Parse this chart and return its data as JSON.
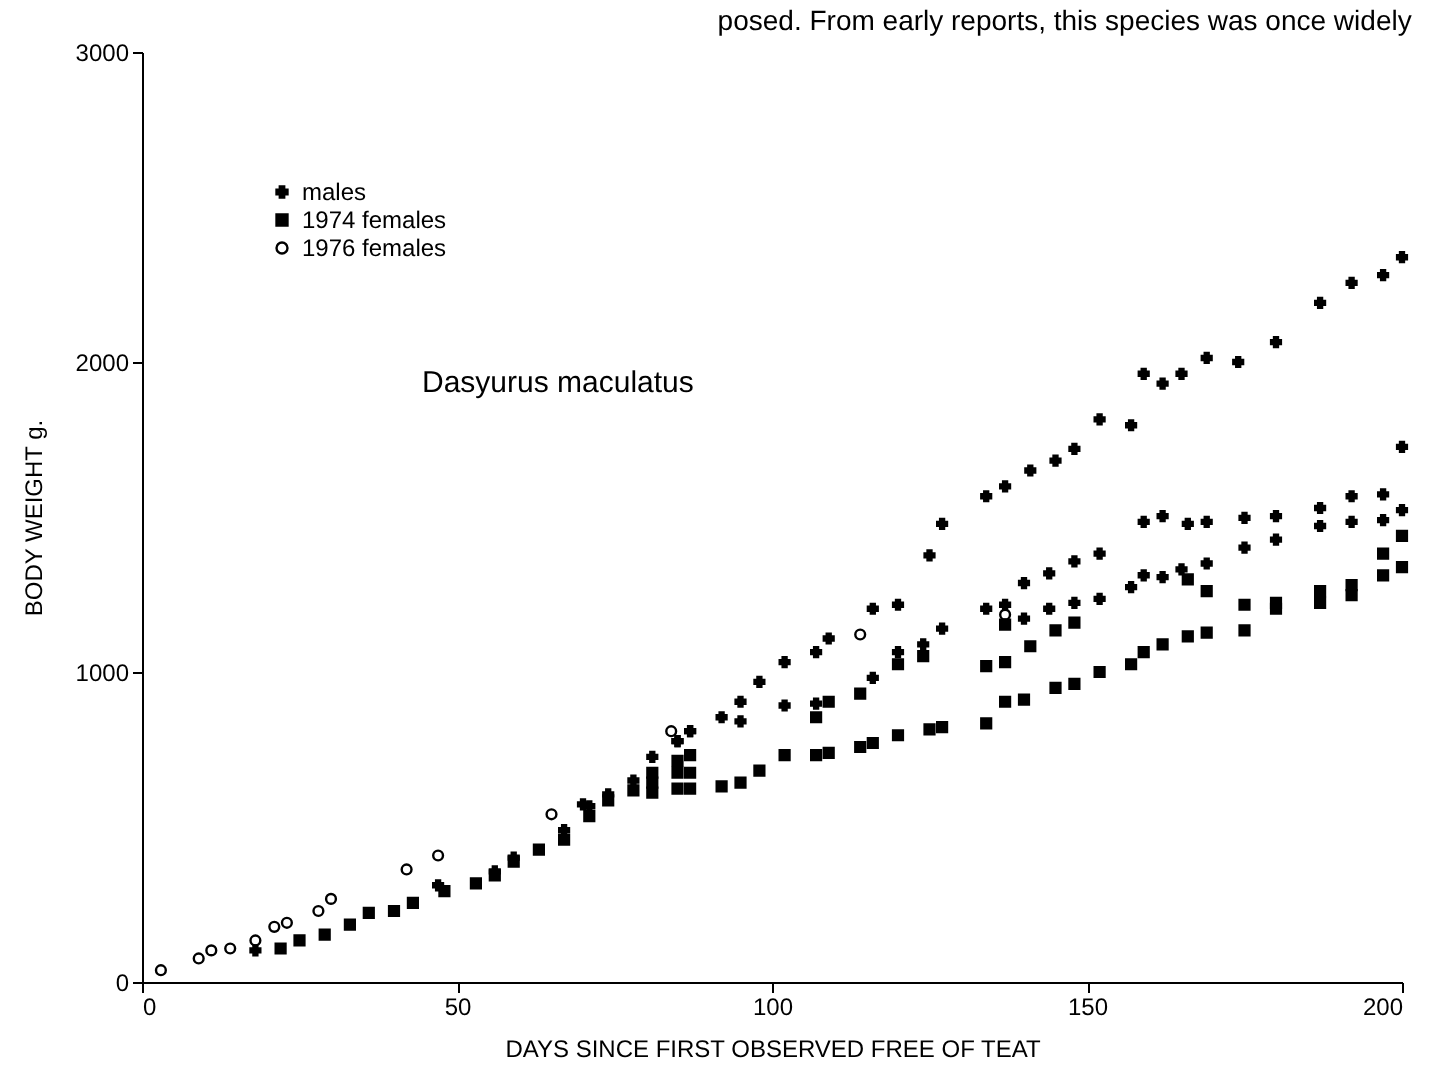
{
  "chart_data": {
    "type": "scatter",
    "xlabel": "DAYS SINCE FIRST OBSERVED FREE OF TEAT",
    "ylabel": "BODY WEIGHT g.",
    "annotations": [
      "posed. From early reports, this species was once widely",
      "Dasyurus maculatus"
    ],
    "xlim": [
      0,
      200
    ],
    "xticks": [
      0,
      50,
      100,
      150,
      200
    ],
    "ylim": [
      0,
      3000
    ],
    "yticks": [
      0,
      1000,
      2000,
      3000
    ],
    "grid": false,
    "legend": "top left",
    "series": [
      {
        "name": "males",
        "color": "#000000",
        "marker": "cross",
        "x": [
          18,
          47,
          56,
          59,
          67,
          71,
          74,
          70,
          78,
          81,
          85,
          87,
          92,
          95,
          98,
          102,
          107,
          109,
          116,
          120,
          124,
          125,
          127,
          127,
          134,
          137,
          141,
          145,
          148,
          152,
          157,
          159,
          162,
          165,
          169,
          174,
          180,
          187,
          192,
          197,
          200,
          116,
          120,
          134,
          137,
          140,
          144,
          148,
          152,
          157,
          159,
          162,
          165,
          169,
          175,
          180,
          187,
          192,
          197,
          200,
          200,
          197,
          192,
          187,
          180,
          175,
          169,
          166,
          162,
          159,
          152,
          148,
          144,
          140,
          107,
          102,
          95,
          85,
          87
        ],
        "values": [
          102,
          312,
          357,
          401,
          490,
          567,
          605,
          573,
          650,
          726,
          777,
          809,
          854,
          904,
          968,
          1032,
          1064,
          1108,
          1204,
          1217,
          1089,
          1376,
          1478,
          1140,
          1567,
          1599,
          1650,
          1682,
          1720,
          1815,
          1796,
          1962,
          1930,
          1962,
          2013,
          2000,
          2064,
          2191,
          2255,
          2280,
          2338,
          981,
          1064,
          1204,
          1217,
          1172,
          1204,
          1223,
          1236,
          1274,
          1312,
          1306,
          1331,
          1350,
          1401,
          1427,
          1471,
          1484,
          1490,
          1522,
          1726,
          1573,
          1567,
          1529,
          1503,
          1497,
          1484,
          1478,
          1503,
          1484,
          1382,
          1357,
          1318,
          1287,
          898,
          892,
          841,
          777,
          809
        ]
      },
      {
        "name": "1974 females",
        "color": "#000000",
        "marker": "square",
        "x": [
          22,
          25,
          29,
          33,
          36,
          40,
          43,
          48,
          53,
          56,
          59,
          63,
          67,
          71,
          74,
          78,
          81,
          81,
          81,
          85,
          87,
          85,
          87,
          85,
          87,
          92,
          95,
          98,
          102,
          107,
          107,
          109,
          109,
          114,
          114,
          116,
          120,
          120,
          124,
          125,
          127,
          134,
          134,
          137,
          137,
          137,
          140,
          141,
          145,
          145,
          148,
          148,
          152,
          157,
          159,
          162,
          166,
          166,
          169,
          169,
          175,
          175,
          180,
          180,
          187,
          187,
          192,
          192,
          197,
          197,
          200,
          200
        ],
        "values": [
          108,
          134,
          153,
          185,
          223,
          229,
          255,
          293,
          318,
          344,
          388,
          427,
          459,
          535,
          586,
          618,
          675,
          643,
          611,
          713,
          732,
          675,
          675,
          624,
          624,
          631,
          643,
          682,
          732,
          732,
          854,
          739,
          904,
          758,
          930,
          771,
          796,
          1025,
          1051,
          815,
          822,
          834,
          1019,
          904,
          1032,
          1153,
          911,
          1083,
          949,
          1134,
          962,
          1159,
          1000,
          1025,
          1064,
          1089,
          1115,
          1299,
          1127,
          1261,
          1134,
          1217,
          1204,
          1223,
          1223,
          1261,
          1248,
          1280,
          1312,
          1382,
          1338,
          1439
        ]
      },
      {
        "name": "1976 females",
        "color": "#000000",
        "marker": "circle",
        "x": [
          3,
          9,
          11,
          14,
          18,
          21,
          23,
          28,
          30,
          42,
          47,
          65,
          84,
          114,
          137
        ],
        "values": [
          38,
          76,
          102,
          108,
          134,
          178,
          191,
          229,
          268,
          363,
          408,
          541,
          809,
          1121,
          1185
        ]
      }
    ]
  }
}
